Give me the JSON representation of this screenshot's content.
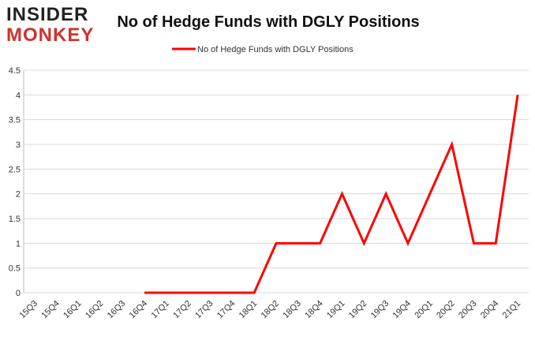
{
  "logo": {
    "line1": "INSIDER",
    "line2": "MONKEY"
  },
  "chart_data": {
    "type": "line",
    "title": "No of Hedge Funds with DGLY Positions",
    "categories": [
      "15Q3",
      "15Q4",
      "16Q1",
      "16Q2",
      "16Q3",
      "16Q4",
      "17Q1",
      "17Q2",
      "17Q3",
      "17Q4",
      "18Q1",
      "18Q2",
      "18Q3",
      "18Q4",
      "19Q1",
      "19Q2",
      "19Q3",
      "19Q4",
      "20Q1",
      "20Q2",
      "20Q3",
      "20Q4",
      "21Q1"
    ],
    "series": [
      {
        "name": "No of Hedge Funds with DGLY Positions",
        "color": "#ff0000",
        "values": [
          null,
          null,
          null,
          null,
          null,
          0,
          0,
          0,
          0,
          0,
          0,
          1,
          1,
          1,
          2,
          1,
          2,
          1,
          2,
          3,
          1,
          1,
          4
        ]
      }
    ],
    "ylim": [
      0,
      4.5
    ],
    "yticks": [
      0,
      0.5,
      1,
      1.5,
      2,
      2.5,
      3,
      3.5,
      4,
      4.5
    ],
    "grid": true,
    "legend": "top"
  }
}
